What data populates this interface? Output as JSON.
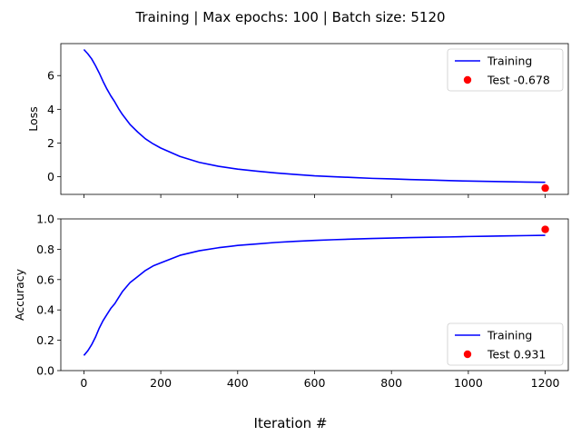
{
  "figure": {
    "suptitle": "Training | Max epochs: 100 | Batch size: 5120",
    "xlabel": "Iteration #"
  },
  "chart_data": [
    {
      "type": "line",
      "ylabel": "Loss",
      "xlim": [
        -60,
        1260
      ],
      "ylim": [
        -1.05,
        7.9
      ],
      "xticks": [
        0,
        200,
        400,
        600,
        800,
        1000,
        1200
      ],
      "yticks": [
        0,
        2,
        4,
        6
      ],
      "grid": false,
      "legend_position": "top-right",
      "series": [
        {
          "name": "Training",
          "color": "#0000ff",
          "x": [
            0,
            10,
            20,
            30,
            40,
            50,
            60,
            70,
            80,
            90,
            100,
            120,
            140,
            160,
            180,
            200,
            250,
            300,
            350,
            400,
            450,
            500,
            550,
            600,
            650,
            700,
            750,
            800,
            850,
            900,
            950,
            1000,
            1050,
            1100,
            1150,
            1200
          ],
          "y": [
            7.55,
            7.3,
            7.0,
            6.6,
            6.15,
            5.65,
            5.2,
            4.8,
            4.45,
            4.05,
            3.7,
            3.1,
            2.65,
            2.25,
            1.95,
            1.7,
            1.2,
            0.85,
            0.62,
            0.45,
            0.33,
            0.22,
            0.13,
            0.05,
            0.0,
            -0.05,
            -0.1,
            -0.13,
            -0.17,
            -0.2,
            -0.23,
            -0.26,
            -0.28,
            -0.3,
            -0.32,
            -0.33
          ]
        }
      ],
      "points": [
        {
          "name": "Test -0.678",
          "color": "#ff0000",
          "x": 1200,
          "y": -0.678
        }
      ]
    },
    {
      "type": "line",
      "ylabel": "Accuracy",
      "xlim": [
        -60,
        1260
      ],
      "ylim": [
        0.0,
        1.0
      ],
      "xticks": [
        0,
        200,
        400,
        600,
        800,
        1000,
        1200
      ],
      "yticks": [
        0.0,
        0.2,
        0.4,
        0.6,
        0.8,
        1.0
      ],
      "ytick_labels": [
        "0.0",
        "0.2",
        "0.4",
        "0.6",
        "0.8",
        "1.0"
      ],
      "grid": false,
      "legend_position": "bottom-right",
      "series": [
        {
          "name": "Training",
          "color": "#0000ff",
          "x": [
            0,
            10,
            20,
            30,
            40,
            50,
            60,
            70,
            80,
            90,
            100,
            120,
            140,
            160,
            180,
            200,
            250,
            300,
            350,
            400,
            450,
            500,
            550,
            600,
            650,
            700,
            750,
            800,
            850,
            900,
            950,
            1000,
            1050,
            1100,
            1150,
            1200
          ],
          "y": [
            0.1,
            0.13,
            0.17,
            0.22,
            0.28,
            0.33,
            0.37,
            0.41,
            0.44,
            0.48,
            0.52,
            0.58,
            0.62,
            0.66,
            0.69,
            0.71,
            0.76,
            0.79,
            0.81,
            0.825,
            0.835,
            0.845,
            0.852,
            0.858,
            0.863,
            0.867,
            0.871,
            0.874,
            0.877,
            0.879,
            0.881,
            0.884,
            0.886,
            0.888,
            0.89,
            0.892
          ]
        }
      ],
      "points": [
        {
          "name": "Test 0.931",
          "color": "#ff0000",
          "x": 1200,
          "y": 0.931
        }
      ]
    }
  ]
}
